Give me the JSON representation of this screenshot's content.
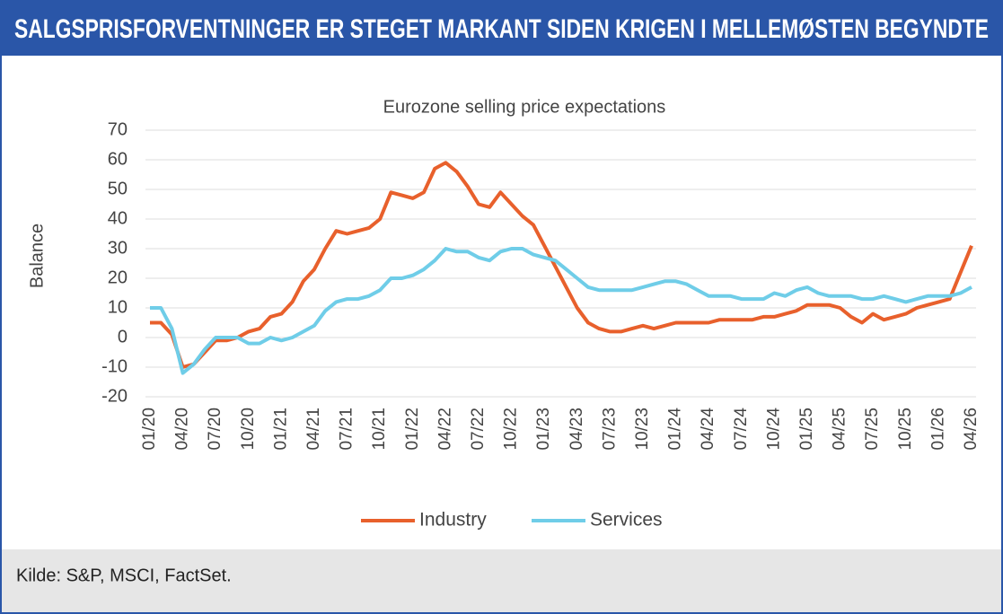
{
  "header": {
    "title": "SALGSPRISFORVENTNINGER ER STEGET MARKANT SIDEN KRIGEN I MELLEMØSTEN BEGYNDTE"
  },
  "source": "Kilde:  S&P, MSCI, FactSet.",
  "chart_data": {
    "type": "line",
    "title": "Eurozone selling price expectations",
    "y_label": "Balance",
    "categories": [
      "01/20",
      null,
      null,
      "04/20",
      null,
      null,
      "07/20",
      null,
      null,
      "10/20",
      null,
      null,
      "01/21",
      null,
      null,
      "04/21",
      null,
      null,
      "07/21",
      null,
      null,
      "10/21",
      null,
      null,
      "01/22",
      null,
      null,
      "04/22",
      null,
      null,
      "07/22",
      null,
      null,
      "10/22",
      null,
      null,
      "01/23",
      null,
      null,
      "04/23",
      null,
      null,
      "07/23",
      null,
      null,
      "10/23",
      null,
      null,
      "01/24",
      null,
      null,
      "04/24",
      null,
      null,
      "07/24",
      null,
      null,
      "10/24",
      null,
      null,
      "01/25",
      null,
      null,
      "04/25",
      null,
      null,
      "07/25",
      null,
      null,
      "10/25",
      null,
      null,
      "01/26",
      null,
      null,
      "04/26"
    ],
    "series": [
      {
        "name": "Industry",
        "color": "#e8602c",
        "values": [
          5,
          5,
          1,
          -10,
          -9,
          -5,
          -1,
          -1,
          0,
          2,
          3,
          7,
          8,
          12,
          19,
          23,
          30,
          36,
          35,
          36,
          37,
          40,
          49,
          48,
          47,
          49,
          57,
          59,
          56,
          51,
          45,
          44,
          49,
          45,
          41,
          38,
          31,
          24,
          17,
          10,
          5,
          3,
          2,
          2,
          3,
          4,
          3,
          4,
          5,
          5,
          5,
          5,
          6,
          6,
          6,
          6,
          7,
          7,
          8,
          9,
          11,
          11,
          11,
          10,
          7,
          5,
          8,
          6,
          7,
          8,
          10,
          11,
          12,
          13,
          22,
          31
        ]
      },
      {
        "name": "Services",
        "color": "#6fcde8",
        "values": [
          10,
          10,
          3,
          -12,
          -9,
          -4,
          0,
          0,
          0,
          -2,
          -2,
          0,
          -1,
          0,
          2,
          4,
          9,
          12,
          13,
          13,
          14,
          16,
          20,
          20,
          21,
          23,
          26,
          30,
          29,
          29,
          27,
          26,
          29,
          30,
          30,
          28,
          27,
          26,
          23,
          20,
          17,
          16,
          16,
          16,
          16,
          17,
          18,
          19,
          19,
          18,
          16,
          14,
          14,
          14,
          13,
          13,
          13,
          15,
          14,
          16,
          17,
          15,
          14,
          14,
          14,
          13,
          13,
          14,
          13,
          12,
          13,
          14,
          14,
          14,
          15,
          17
        ]
      }
    ],
    "ylim": [
      -20,
      70
    ],
    "yticks": [
      -20,
      -10,
      0,
      10,
      20,
      30,
      40,
      50,
      60,
      70
    ],
    "grid": true,
    "legend": "bottom"
  }
}
